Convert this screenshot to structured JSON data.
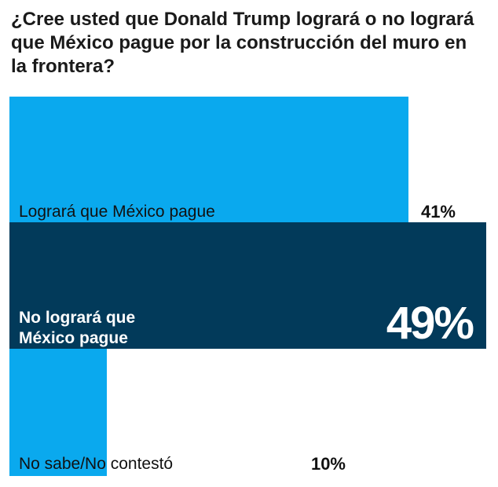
{
  "question": "¿Cree usted que Donald Trump logrará o no logrará que México pague por la construcción del muro en la frontera?",
  "colors": {
    "light": "#0aa9ee",
    "dark": "#023a5a",
    "text": "#111111"
  },
  "chart_data": {
    "type": "bar",
    "title": "¿Cree usted que Donald Trump logrará o no logrará que México pague por la construcción del muro en la frontera?",
    "categories": [
      "Logrará que México pague",
      "No logrará que México pague",
      "No sabe/No contestó"
    ],
    "values": [
      41,
      49,
      10
    ],
    "value_labels": [
      "41%",
      "49%",
      "10%"
    ],
    "category_lines": [
      [
        "Logrará que México pague"
      ],
      [
        "No logrará que",
        "México pague"
      ],
      [
        "No sabe/No contestó"
      ]
    ],
    "xlim": [
      0,
      49
    ],
    "orientation": "horizontal",
    "grid": false,
    "legend": "none"
  }
}
